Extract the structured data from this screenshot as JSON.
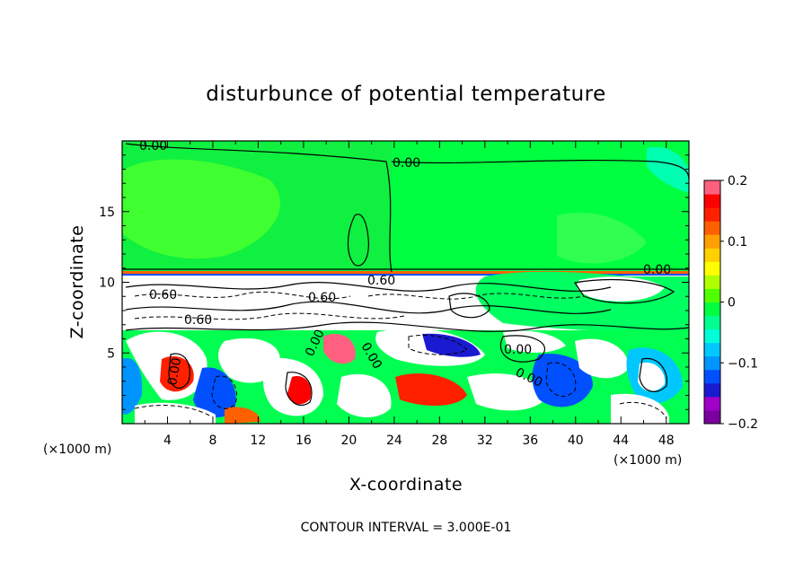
{
  "chart_data": {
    "type": "heatmap",
    "title": "disturbunce of potential temperature",
    "xlabel": "X-coordinate",
    "ylabel": "Z-coordinate",
    "x_unit": "(×1000 m)",
    "x_unit_right": "(×1000 m)",
    "x_ticks": [
      4,
      8,
      12,
      16,
      20,
      24,
      28,
      32,
      36,
      40,
      44,
      48
    ],
    "y_ticks": [
      5,
      10,
      15
    ],
    "xlim": [
      0,
      50
    ],
    "ylim": [
      0,
      20
    ],
    "contour_interval_text": "CONTOUR INTERVAL = 3.000E-01",
    "contour_labels": [
      "0.00",
      "0.00",
      "0.00",
      "0.60",
      "0.60",
      "0.60",
      "0.60",
      "0.00",
      "0.00",
      "0.00",
      "0.00",
      "0.00"
    ],
    "colorbar": {
      "ticks": [
        "0.2",
        "0.1",
        "0",
        "−0.1",
        "−0.2"
      ],
      "range": [
        -0.2,
        0.2
      ],
      "colors": [
        "#7a00a0",
        "#a000c8",
        "#1a1ad0",
        "#0050ff",
        "#0094ff",
        "#00c8ff",
        "#00ffd8",
        "#00ff90",
        "#00ff40",
        "#50ff00",
        "#b0ff00",
        "#ffff00",
        "#ffd000",
        "#ffa000",
        "#ff6000",
        "#ff2000",
        "#ff0000",
        "#ff6080"
      ]
    },
    "regions": {
      "upper_layer": "near-uniform weak positive (green) above z≈10.5",
      "interface": "strong perturbations with dense contours near z≈7–10.5",
      "lower_layer": "turbulent mixed positive/negative eddies below z≈7"
    }
  }
}
